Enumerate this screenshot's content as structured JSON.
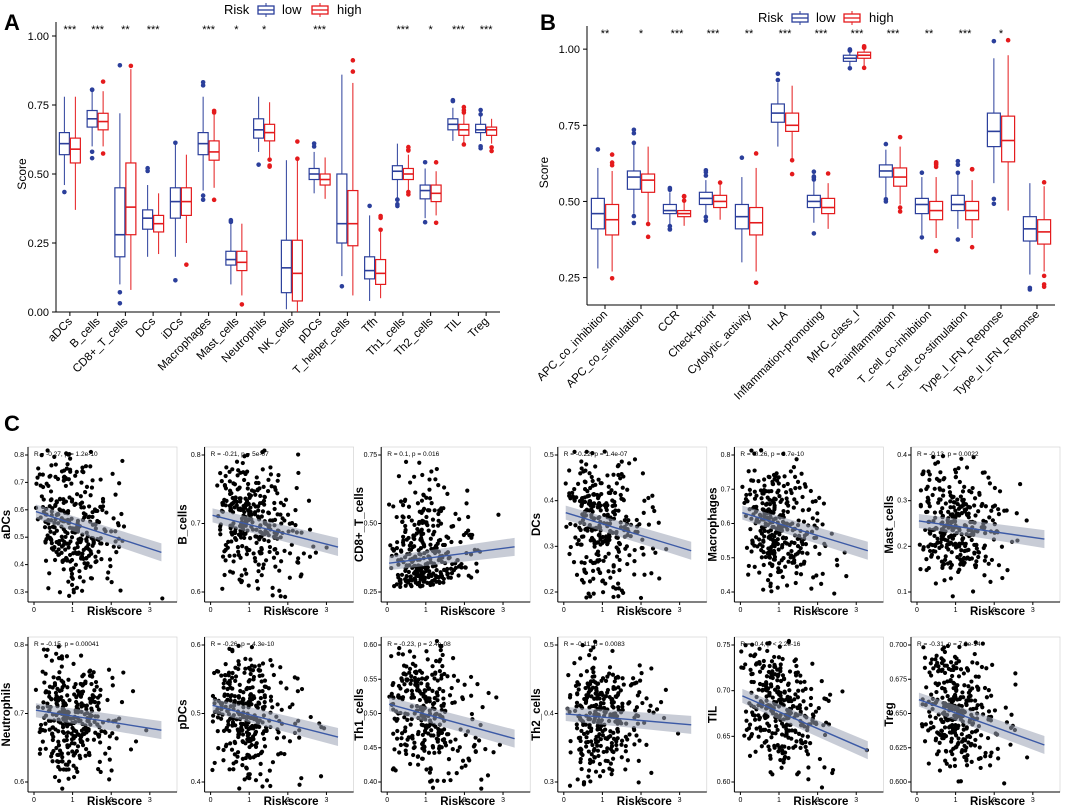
{
  "panels": {
    "A": "A",
    "B": "B",
    "C": "C"
  },
  "legend": {
    "title": "Risk",
    "low": "low",
    "high": "high",
    "low_color": "#2b3f9b",
    "high_color": "#e41a1c"
  },
  "chart_data": [
    {
      "id": "A",
      "type": "box",
      "ylabel": "Score",
      "ylim": [
        0,
        1
      ],
      "yticks": [
        "0.00",
        "0.25",
        "0.50",
        "0.75",
        "1.00"
      ],
      "categories": [
        "aDCs",
        "B_cells",
        "CD8+_T_cells",
        "DCs",
        "iDCs",
        "Macrophages",
        "Mast_cells",
        "Neutrophils",
        "NK_cells",
        "pDCs",
        "T_helper_cells",
        "Tfh",
        "Th1_cells",
        "Th2_cells",
        "TIL",
        "Treg"
      ],
      "significance": [
        "***",
        "***",
        "**",
        "***",
        "",
        "***",
        "*",
        "*",
        "",
        "***",
        "",
        "",
        "***",
        "*",
        "***",
        "***"
      ],
      "series": [
        {
          "name": "low",
          "boxes": [
            [
              0.46,
              0.57,
              0.61,
              0.65,
              0.78
            ],
            [
              0.6,
              0.67,
              0.7,
              0.73,
              0.8
            ],
            [
              0.1,
              0.2,
              0.28,
              0.45,
              0.72
            ],
            [
              0.2,
              0.3,
              0.34,
              0.37,
              0.46
            ],
            [
              0.2,
              0.34,
              0.4,
              0.45,
              0.61
            ],
            [
              0.44,
              0.57,
              0.61,
              0.65,
              0.78
            ],
            [
              0.1,
              0.17,
              0.19,
              0.22,
              0.32
            ],
            [
              0.58,
              0.63,
              0.66,
              0.7,
              0.78
            ],
            [
              0.01,
              0.07,
              0.16,
              0.26,
              0.55
            ],
            [
              0.43,
              0.48,
              0.5,
              0.52,
              0.58
            ],
            [
              0.13,
              0.25,
              0.32,
              0.5,
              0.86
            ],
            [
              0.04,
              0.12,
              0.15,
              0.2,
              0.35
            ],
            [
              0.41,
              0.48,
              0.51,
              0.53,
              0.61
            ],
            [
              0.34,
              0.41,
              0.44,
              0.46,
              0.52
            ],
            [
              0.62,
              0.66,
              0.68,
              0.7,
              0.74
            ],
            [
              0.62,
              0.65,
              0.66,
              0.68,
              0.71
            ]
          ]
        },
        {
          "name": "high",
          "boxes": [
            [
              0.37,
              0.54,
              0.59,
              0.63,
              0.78
            ],
            [
              0.6,
              0.66,
              0.69,
              0.72,
              0.8
            ],
            [
              0.08,
              0.28,
              0.38,
              0.54,
              0.88
            ],
            [
              0.21,
              0.29,
              0.32,
              0.35,
              0.43
            ],
            [
              0.25,
              0.35,
              0.4,
              0.45,
              0.57
            ],
            [
              0.45,
              0.55,
              0.58,
              0.62,
              0.72
            ],
            [
              0.06,
              0.15,
              0.18,
              0.22,
              0.32
            ],
            [
              0.56,
              0.62,
              0.65,
              0.68,
              0.76
            ],
            [
              0.0,
              0.04,
              0.14,
              0.26,
              0.55
            ],
            [
              0.41,
              0.46,
              0.48,
              0.5,
              0.56
            ],
            [
              0.06,
              0.24,
              0.32,
              0.44,
              0.83
            ],
            [
              0.05,
              0.1,
              0.14,
              0.19,
              0.29
            ],
            [
              0.44,
              0.48,
              0.5,
              0.52,
              0.57
            ],
            [
              0.35,
              0.4,
              0.43,
              0.46,
              0.51
            ],
            [
              0.61,
              0.64,
              0.66,
              0.68,
              0.72
            ],
            [
              0.61,
              0.64,
              0.66,
              0.67,
              0.7
            ]
          ]
        }
      ]
    },
    {
      "id": "B",
      "type": "box",
      "ylabel": "Score",
      "ylim": [
        0.16,
        1.03
      ],
      "yticks": [
        "0.25",
        "0.50",
        "0.75",
        "1.00"
      ],
      "categories": [
        "APC_co_inhibition",
        "APC_co_stimulation",
        "CCR",
        "Check-point",
        "Cytolytic_activity",
        "HLA",
        "Inflammation-promoting",
        "MHC_class_I",
        "Parainflammation",
        "T_cell_co-inhibition",
        "T_cell_co-stimulation",
        "Type_I_IFN_Reponse",
        "Type_II_IFN_Reponse"
      ],
      "significance": [
        "**",
        "*",
        "***",
        "***",
        "**",
        "***",
        "***",
        "***",
        "***",
        "**",
        "***",
        "*",
        ""
      ],
      "series": [
        {
          "name": "low",
          "boxes": [
            [
              0.28,
              0.41,
              0.46,
              0.51,
              0.61
            ],
            [
              0.46,
              0.54,
              0.58,
              0.6,
              0.69
            ],
            [
              0.42,
              0.46,
              0.47,
              0.49,
              0.53
            ],
            [
              0.45,
              0.49,
              0.51,
              0.53,
              0.57
            ],
            [
              0.3,
              0.41,
              0.45,
              0.49,
              0.58
            ],
            [
              0.68,
              0.76,
              0.79,
              0.82,
              0.89
            ],
            [
              0.43,
              0.48,
              0.5,
              0.52,
              0.57
            ],
            [
              0.94,
              0.96,
              0.97,
              0.98,
              0.99
            ],
            [
              0.51,
              0.58,
              0.6,
              0.62,
              0.67
            ],
            [
              0.39,
              0.46,
              0.49,
              0.51,
              0.58
            ],
            [
              0.41,
              0.47,
              0.49,
              0.52,
              0.59
            ],
            [
              0.56,
              0.68,
              0.73,
              0.79,
              0.97
            ],
            [
              0.26,
              0.37,
              0.41,
              0.45,
              0.56
            ]
          ]
        },
        {
          "name": "high",
          "boxes": [
            [
              0.27,
              0.39,
              0.44,
              0.49,
              0.6
            ],
            [
              0.43,
              0.53,
              0.57,
              0.59,
              0.68
            ],
            [
              0.42,
              0.45,
              0.46,
              0.47,
              0.5
            ],
            [
              0.44,
              0.48,
              0.5,
              0.52,
              0.56
            ],
            [
              0.27,
              0.39,
              0.43,
              0.48,
              0.61
            ],
            [
              0.64,
              0.73,
              0.75,
              0.79,
              0.88
            ],
            [
              0.41,
              0.46,
              0.48,
              0.51,
              0.56
            ],
            [
              0.94,
              0.97,
              0.98,
              0.99,
              1.0
            ],
            [
              0.49,
              0.55,
              0.58,
              0.61,
              0.68
            ],
            [
              0.38,
              0.44,
              0.47,
              0.5,
              0.58
            ],
            [
              0.38,
              0.44,
              0.47,
              0.5,
              0.57
            ],
            [
              0.47,
              0.63,
              0.7,
              0.78,
              0.98
            ],
            [
              0.27,
              0.36,
              0.4,
              0.44,
              0.55
            ]
          ]
        }
      ]
    },
    {
      "id": "C",
      "type": "scatter",
      "xlabel": "Riskscore",
      "xticks": [
        "0",
        "1",
        "2",
        "3"
      ],
      "subplots": [
        {
          "ylabel": "aDCs",
          "stat": "R = -0.27, p = 1.2e-10",
          "yticks": [
            "0.3",
            "0.4",
            "0.5",
            "0.6",
            "0.7",
            "0.8"
          ],
          "slope": -0.45,
          "spread": 0.22
        },
        {
          "ylabel": "B_cells",
          "stat": "R = -0.21, p = 5e-07",
          "yticks": [
            "0.6",
            "0.7",
            "0.8"
          ],
          "slope": -0.35,
          "spread": 0.22
        },
        {
          "ylabel": "CD8+_T_cells",
          "stat": "R = 0.1, p = 0.016",
          "yticks": [
            "0.25",
            "0.50",
            "0.75"
          ],
          "slope": 0.18,
          "spread": 0.3
        },
        {
          "ylabel": "DCs",
          "stat": "R = -0.22, p = 1.4e-07",
          "yticks": [
            "0.2",
            "0.3",
            "0.4",
            "0.5"
          ],
          "slope": -0.42,
          "spread": 0.24
        },
        {
          "ylabel": "Macrophages",
          "stat": "R = -0.26, p = 3.7e-10",
          "yticks": [
            "0.4",
            "0.5",
            "0.6",
            "0.7",
            "0.8"
          ],
          "slope": -0.42,
          "spread": 0.2
        },
        {
          "ylabel": "Mast_cells",
          "stat": "R = -0.13, p = 0.0022",
          "yticks": [
            "0.1",
            "0.2",
            "0.3",
            "0.4"
          ],
          "slope": -0.2,
          "spread": 0.18
        },
        {
          "ylabel": "Neutrophils",
          "stat": "R = -0.15, p = 0.00041",
          "yticks": [
            "0.6",
            "0.7",
            "0.8"
          ],
          "slope": -0.22,
          "spread": 0.2
        },
        {
          "ylabel": "pDCs",
          "stat": "R = -0.26, p = 4.3e-10",
          "yticks": [
            "0.4",
            "0.5",
            "0.6"
          ],
          "slope": -0.35,
          "spread": 0.2
        },
        {
          "ylabel": "Th1_cells",
          "stat": "R = -0.23, p = 2.4e-08",
          "yticks": [
            "0.40",
            "0.45",
            "0.50",
            "0.55",
            "0.60"
          ],
          "slope": -0.38,
          "spread": 0.22
        },
        {
          "ylabel": "Th2_cells",
          "stat": "R = -0.11, p = 0.0083",
          "yticks": [
            "0.3",
            "0.4",
            "0.5"
          ],
          "slope": -0.12,
          "spread": 0.2
        },
        {
          "ylabel": "TIL",
          "stat": "R = -0.4, p < 2.2e-16",
          "yticks": [
            "0.60",
            "0.65",
            "0.70",
            "0.75"
          ],
          "slope": -0.6,
          "spread": 0.2
        },
        {
          "ylabel": "Treg",
          "stat": "R = -0.31, p = 7.3e-14",
          "yticks": [
            "0.600",
            "0.625",
            "0.650",
            "0.675",
            "0.700"
          ],
          "slope": -0.5,
          "spread": 0.2
        }
      ]
    }
  ]
}
